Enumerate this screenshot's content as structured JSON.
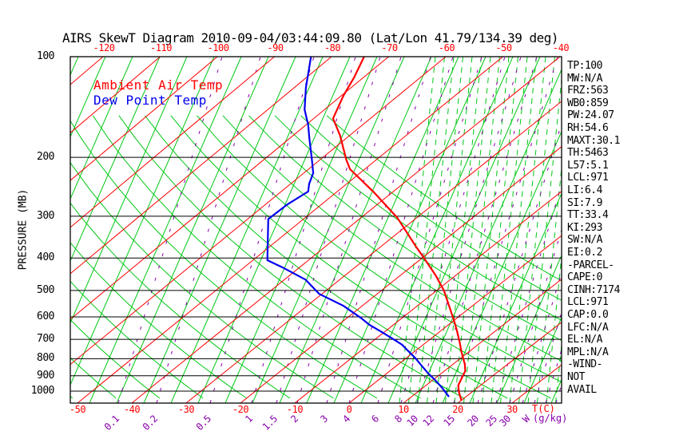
{
  "title": "AIRS SkewT Diagram 2010-09-04/03:44:09.80 (Lat/Lon 41.79/134.39 deg)",
  "legend": [
    {
      "label": "Ambient Air Temp",
      "color": "#ff0000"
    },
    {
      "label": "Dew Point Temp",
      "color": "#0000ee"
    }
  ],
  "pressure_axis_label": "PRESSURE (MB)",
  "bottom_axis_label": "T(C)",
  "mixing_axis_label": "W(g/kg)",
  "colors": {
    "ambient_temp": "#ff0000",
    "dew_point": "#0000ee",
    "isotherm": "#ff0000",
    "adiabat_green": "#00c814",
    "mixing_purple": "#8800aa",
    "isobar_black": "#000000"
  },
  "stats": [
    "TP:100",
    "MW:N/A",
    "FRZ:563",
    "WB0:859",
    "PW:24.07",
    "RH:54.6",
    "MAXT:30.1",
    "TH:5463",
    "L57:5.1",
    "LCL:971",
    "LI:6.4",
    "SI:7.9",
    "TT:33.4",
    "KI:293",
    "SW:N/A",
    "EI:0.2",
    "-PARCEL-",
    "CAPE:0",
    "CINH:7174",
    "LCL:971",
    "CAP:0.0",
    "LFC:N/A",
    "EL:N/A",
    "MPL:N/A",
    "-WIND-",
    "NOT",
    "AVAIL"
  ],
  "chart_data": {
    "type": "skew-t-log-p",
    "title": "AIRS SkewT Diagram 2010-09-04/03:44:09.80 (Lat/Lon 41.79/134.39 deg)",
    "pressure_ticks_mb": [
      100,
      200,
      300,
      400,
      500,
      600,
      700,
      800,
      900,
      1000
    ],
    "top_temp_ticks_c": [
      -120,
      -110,
      -100,
      -90,
      -80,
      -70,
      -60,
      -50,
      -40
    ],
    "bottom_temp_ticks_c": [
      -50,
      -40,
      -30,
      -20,
      -10,
      0,
      10,
      20,
      30
    ],
    "mixing_ratio_ticks_gkg": [
      "0.1",
      "0.2",
      "0.5",
      "1",
      "1.5",
      "2",
      "3",
      "4",
      "6",
      "8",
      "10",
      "12",
      "15",
      "20",
      "25",
      "30"
    ],
    "ylabel": "PRESSURE (MB)",
    "xlabel": "T(C)",
    "x2label": "W(g/kg)",
    "ylim_mb": [
      100,
      1050
    ],
    "grid": {
      "isotherm_step_c": 10,
      "isobar_lines": true,
      "dry_adiabats": "green solid",
      "moist_adiabats": "green dashed",
      "mixing_ratio_lines": "purple dashed"
    },
    "legend_position": "top-left",
    "series": [
      {
        "name": "Ambient Air Temp",
        "color": "#ff0000",
        "points_p_mb_T_c": [
          [
            100,
            -74.3
          ],
          [
            115,
            -71.7
          ],
          [
            131,
            -69.6
          ],
          [
            153,
            -66.6
          ],
          [
            172,
            -61.7
          ],
          [
            203,
            -55.4
          ],
          [
            217,
            -52.6
          ],
          [
            253,
            -43.6
          ],
          [
            303,
            -33.5
          ],
          [
            368,
            -23.9
          ],
          [
            415,
            -17.8
          ],
          [
            450,
            -13.7
          ],
          [
            500,
            -8.7
          ],
          [
            578,
            -2.6
          ],
          [
            610,
            -0.3
          ],
          [
            661,
            3.0
          ],
          [
            718,
            6.3
          ],
          [
            766,
            8.8
          ],
          [
            832,
            12.2
          ],
          [
            870,
            13.8
          ],
          [
            961,
            15.9
          ],
          [
            1011,
            17.8
          ],
          [
            1070,
            20.2
          ]
        ]
      },
      {
        "name": "Dew Point Temp",
        "color": "#0000ee",
        "points_p_mb_T_c": [
          [
            100,
            -83.6
          ],
          [
            124,
            -77.9
          ],
          [
            144,
            -73.5
          ],
          [
            160,
            -69.6
          ],
          [
            175,
            -66.6
          ],
          [
            203,
            -61.5
          ],
          [
            223,
            -58.3
          ],
          [
            240,
            -56.7
          ],
          [
            253,
            -55.2
          ],
          [
            277,
            -56.1
          ],
          [
            306,
            -56.3
          ],
          [
            406,
            -47.4
          ],
          [
            426,
            -43.2
          ],
          [
            464,
            -36.2
          ],
          [
            512,
            -30.5
          ],
          [
            556,
            -23.4
          ],
          [
            604,
            -17.5
          ],
          [
            634,
            -14.3
          ],
          [
            663,
            -10.8
          ],
          [
            693,
            -7.4
          ],
          [
            726,
            -3.9
          ],
          [
            757,
            -1.4
          ],
          [
            797,
            1.7
          ],
          [
            838,
            4.5
          ],
          [
            882,
            7.4
          ],
          [
            928,
            10.5
          ],
          [
            977,
            13.5
          ],
          [
            1040,
            16.9
          ]
        ]
      }
    ],
    "indices": {
      "TP": "100",
      "MW": "N/A",
      "FRZ": "563",
      "WB0": "859",
      "PW": "24.07",
      "RH": "54.6",
      "MAXT": "30.1",
      "TH": "5463",
      "L57": "5.1",
      "LCL": "971",
      "LI": "6.4",
      "SI": "7.9",
      "TT": "33.4",
      "KI": "293",
      "SW": "N/A",
      "EI": "0.2",
      "CAPE": "0",
      "CINH": "7174",
      "LCL2": "971",
      "CAP": "0.0",
      "LFC": "N/A",
      "EL": "N/A",
      "MPL": "N/A",
      "WIND": "NOT AVAIL"
    }
  }
}
